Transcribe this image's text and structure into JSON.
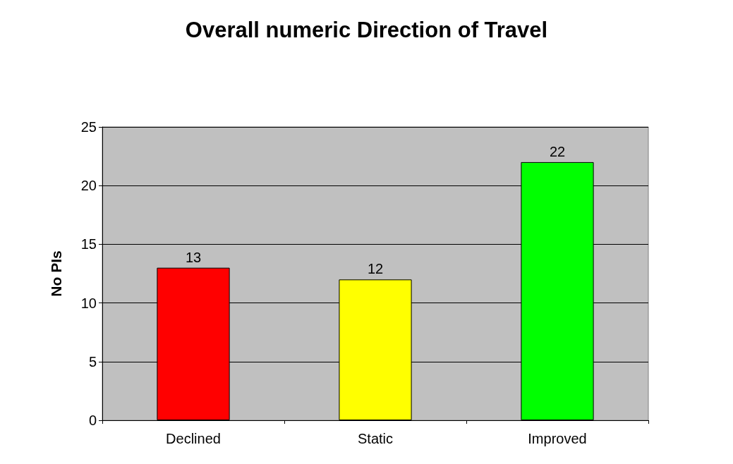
{
  "chart_data": {
    "type": "bar",
    "title": "Overall numeric Direction of Travel",
    "ylabel": "No PIs",
    "categories": [
      "Declined",
      "Static",
      "Improved"
    ],
    "values": [
      13,
      12,
      22
    ],
    "colors": [
      "#ff0000",
      "#ffff00",
      "#00ff00"
    ],
    "ylim": [
      0,
      25
    ],
    "yticks": [
      0,
      5,
      10,
      15,
      20,
      25
    ],
    "grid": "y",
    "data_labels": true
  }
}
